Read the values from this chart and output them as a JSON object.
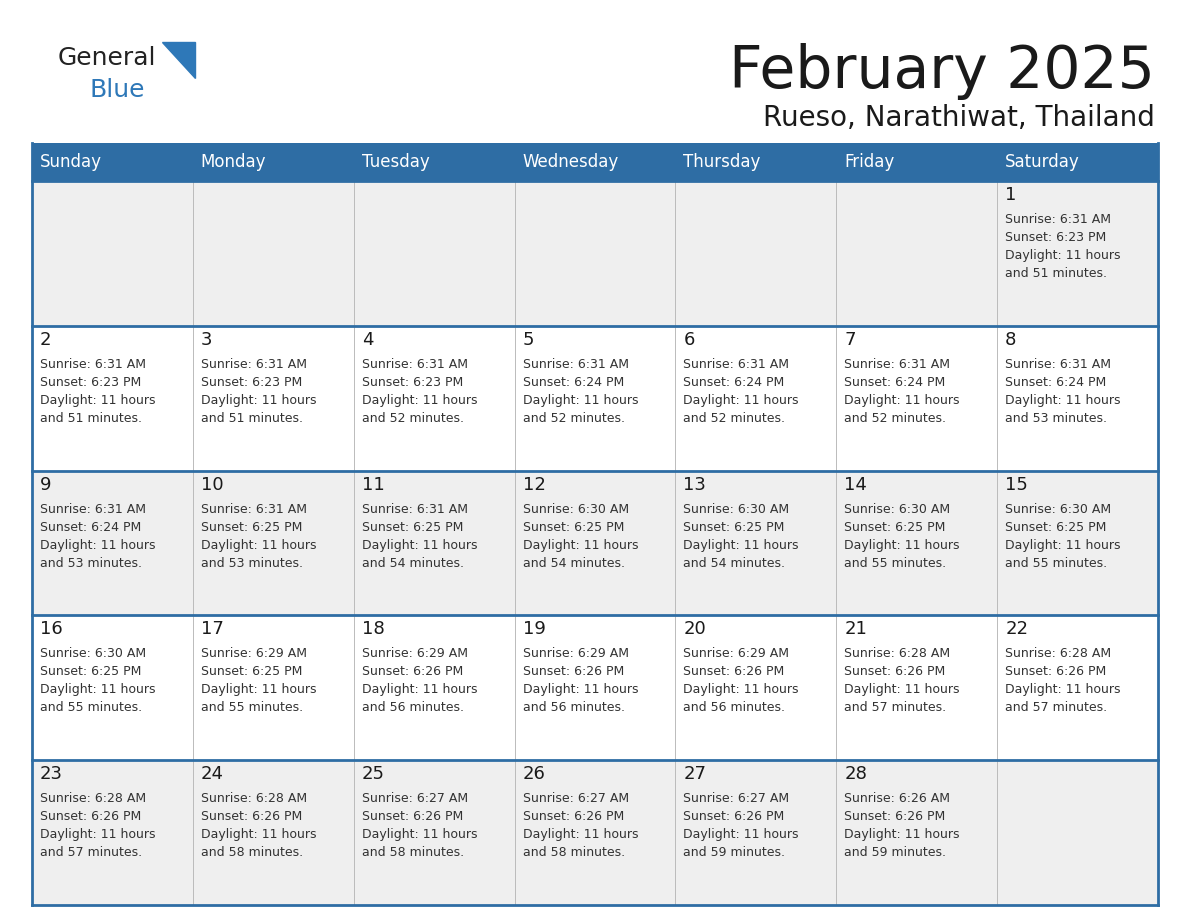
{
  "title": "February 2025",
  "subtitle": "Rueso, Narathiwat, Thailand",
  "header_bg": "#2E6DA4",
  "header_text_color": "#FFFFFF",
  "cell_bg_light": "#EFEFEF",
  "cell_bg_white": "#FFFFFF",
  "border_color": "#2E6DA4",
  "title_color": "#1a1a1a",
  "subtitle_color": "#1a1a1a",
  "info_text_color": "#333333",
  "days_of_week": [
    "Sunday",
    "Monday",
    "Tuesday",
    "Wednesday",
    "Thursday",
    "Friday",
    "Saturday"
  ],
  "weeks": [
    [
      {
        "day": "",
        "info": ""
      },
      {
        "day": "",
        "info": ""
      },
      {
        "day": "",
        "info": ""
      },
      {
        "day": "",
        "info": ""
      },
      {
        "day": "",
        "info": ""
      },
      {
        "day": "",
        "info": ""
      },
      {
        "day": "1",
        "info": "Sunrise: 6:31 AM\nSunset: 6:23 PM\nDaylight: 11 hours\nand 51 minutes."
      }
    ],
    [
      {
        "day": "2",
        "info": "Sunrise: 6:31 AM\nSunset: 6:23 PM\nDaylight: 11 hours\nand 51 minutes."
      },
      {
        "day": "3",
        "info": "Sunrise: 6:31 AM\nSunset: 6:23 PM\nDaylight: 11 hours\nand 51 minutes."
      },
      {
        "day": "4",
        "info": "Sunrise: 6:31 AM\nSunset: 6:23 PM\nDaylight: 11 hours\nand 52 minutes."
      },
      {
        "day": "5",
        "info": "Sunrise: 6:31 AM\nSunset: 6:24 PM\nDaylight: 11 hours\nand 52 minutes."
      },
      {
        "day": "6",
        "info": "Sunrise: 6:31 AM\nSunset: 6:24 PM\nDaylight: 11 hours\nand 52 minutes."
      },
      {
        "day": "7",
        "info": "Sunrise: 6:31 AM\nSunset: 6:24 PM\nDaylight: 11 hours\nand 52 minutes."
      },
      {
        "day": "8",
        "info": "Sunrise: 6:31 AM\nSunset: 6:24 PM\nDaylight: 11 hours\nand 53 minutes."
      }
    ],
    [
      {
        "day": "9",
        "info": "Sunrise: 6:31 AM\nSunset: 6:24 PM\nDaylight: 11 hours\nand 53 minutes."
      },
      {
        "day": "10",
        "info": "Sunrise: 6:31 AM\nSunset: 6:25 PM\nDaylight: 11 hours\nand 53 minutes."
      },
      {
        "day": "11",
        "info": "Sunrise: 6:31 AM\nSunset: 6:25 PM\nDaylight: 11 hours\nand 54 minutes."
      },
      {
        "day": "12",
        "info": "Sunrise: 6:30 AM\nSunset: 6:25 PM\nDaylight: 11 hours\nand 54 minutes."
      },
      {
        "day": "13",
        "info": "Sunrise: 6:30 AM\nSunset: 6:25 PM\nDaylight: 11 hours\nand 54 minutes."
      },
      {
        "day": "14",
        "info": "Sunrise: 6:30 AM\nSunset: 6:25 PM\nDaylight: 11 hours\nand 55 minutes."
      },
      {
        "day": "15",
        "info": "Sunrise: 6:30 AM\nSunset: 6:25 PM\nDaylight: 11 hours\nand 55 minutes."
      }
    ],
    [
      {
        "day": "16",
        "info": "Sunrise: 6:30 AM\nSunset: 6:25 PM\nDaylight: 11 hours\nand 55 minutes."
      },
      {
        "day": "17",
        "info": "Sunrise: 6:29 AM\nSunset: 6:25 PM\nDaylight: 11 hours\nand 55 minutes."
      },
      {
        "day": "18",
        "info": "Sunrise: 6:29 AM\nSunset: 6:26 PM\nDaylight: 11 hours\nand 56 minutes."
      },
      {
        "day": "19",
        "info": "Sunrise: 6:29 AM\nSunset: 6:26 PM\nDaylight: 11 hours\nand 56 minutes."
      },
      {
        "day": "20",
        "info": "Sunrise: 6:29 AM\nSunset: 6:26 PM\nDaylight: 11 hours\nand 56 minutes."
      },
      {
        "day": "21",
        "info": "Sunrise: 6:28 AM\nSunset: 6:26 PM\nDaylight: 11 hours\nand 57 minutes."
      },
      {
        "day": "22",
        "info": "Sunrise: 6:28 AM\nSunset: 6:26 PM\nDaylight: 11 hours\nand 57 minutes."
      }
    ],
    [
      {
        "day": "23",
        "info": "Sunrise: 6:28 AM\nSunset: 6:26 PM\nDaylight: 11 hours\nand 57 minutes."
      },
      {
        "day": "24",
        "info": "Sunrise: 6:28 AM\nSunset: 6:26 PM\nDaylight: 11 hours\nand 58 minutes."
      },
      {
        "day": "25",
        "info": "Sunrise: 6:27 AM\nSunset: 6:26 PM\nDaylight: 11 hours\nand 58 minutes."
      },
      {
        "day": "26",
        "info": "Sunrise: 6:27 AM\nSunset: 6:26 PM\nDaylight: 11 hours\nand 58 minutes."
      },
      {
        "day": "27",
        "info": "Sunrise: 6:27 AM\nSunset: 6:26 PM\nDaylight: 11 hours\nand 59 minutes."
      },
      {
        "day": "28",
        "info": "Sunrise: 6:26 AM\nSunset: 6:26 PM\nDaylight: 11 hours\nand 59 minutes."
      },
      {
        "day": "",
        "info": ""
      }
    ]
  ],
  "logo_general_color": "#222222",
  "logo_blue_color": "#2E78B8"
}
